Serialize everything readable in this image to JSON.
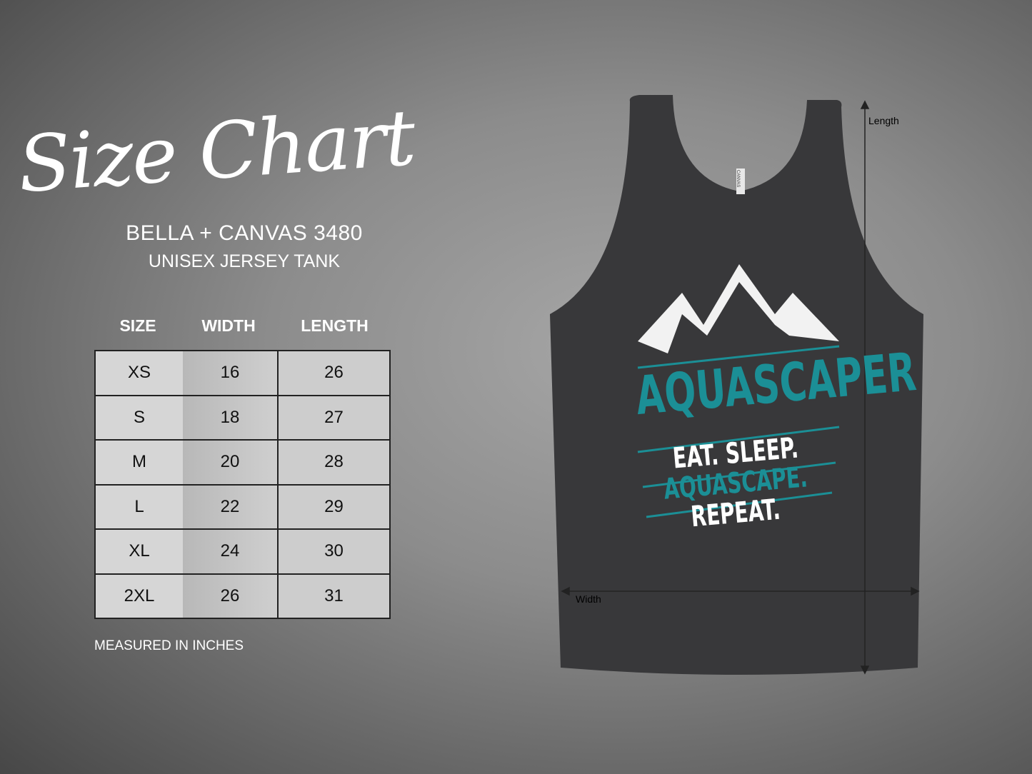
{
  "header": {
    "title": "Size Chart",
    "brand": "BELLA + CANVAS 3480",
    "model": "UNISEX JERSEY TANK"
  },
  "table": {
    "columns": [
      "SIZE",
      "WIDTH",
      "LENGTH"
    ],
    "rows": [
      [
        "XS",
        "16",
        "26"
      ],
      [
        "S",
        "18",
        "27"
      ],
      [
        "M",
        "20",
        "28"
      ],
      [
        "L",
        "22",
        "29"
      ],
      [
        "XL",
        "24",
        "30"
      ],
      [
        "2XL",
        "26",
        "31"
      ]
    ]
  },
  "note": "MEASURED IN INCHES",
  "product": {
    "design_title": "AQUASCAPER",
    "design_lines": [
      "EAT. SLEEP.",
      "AQUASCAPE.",
      "REPEAT."
    ],
    "tag_text": "CANVAS",
    "length_label": "Length",
    "width_label": "Width",
    "tank_color": "#38383a",
    "accent_color": "#1b8f96"
  }
}
